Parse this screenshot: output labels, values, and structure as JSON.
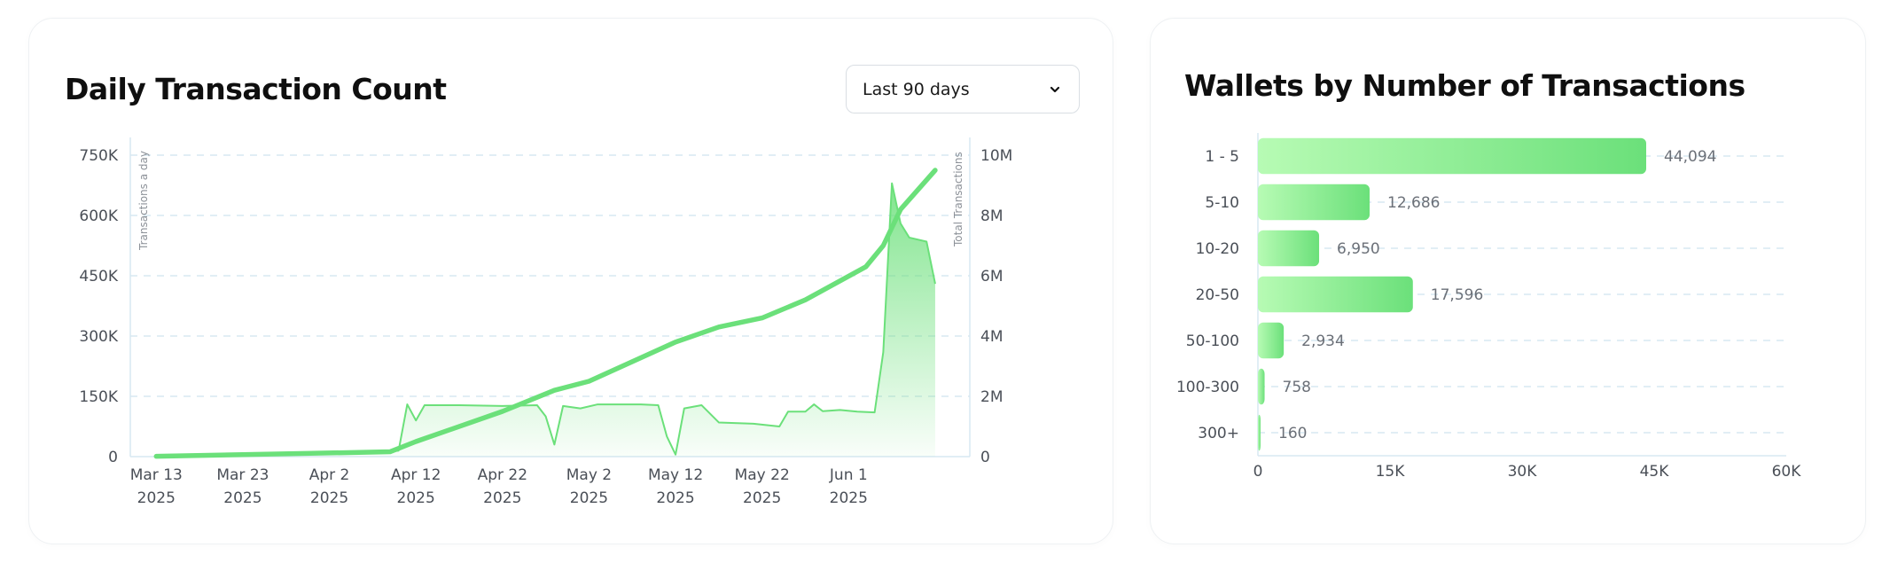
{
  "colors": {
    "accent": "#6be07a",
    "accent_light": "#b7fbb4",
    "grid": "#cfe3ef"
  },
  "left_card": {
    "title": "Daily Transaction Count",
    "range_select": {
      "selected": "Last 90 days",
      "icon": "chevron-down-icon"
    }
  },
  "right_card": {
    "title": "Wallets by Number of Transactions"
  },
  "chart_data": [
    {
      "type": "line",
      "title": "Daily Transaction Count",
      "y_left_label": "Transactions a day",
      "y_right_label": "Total Transactions",
      "y_left_ticks": [
        "0",
        "150K",
        "300K",
        "450K",
        "600K",
        "750K"
      ],
      "y_right_ticks": [
        "0",
        "2M",
        "4M",
        "6M",
        "8M",
        "10M"
      ],
      "y_left_range": [
        0,
        750000
      ],
      "y_right_range": [
        0,
        10000000
      ],
      "x_range": [
        "2025-03-10",
        "2025-06-15"
      ],
      "x_ticks": [
        {
          "date": "2025-03-13",
          "label": "Mar 13",
          "year": "2025"
        },
        {
          "date": "2025-03-23",
          "label": "Mar 23",
          "year": "2025"
        },
        {
          "date": "2025-04-02",
          "label": "Apr 2",
          "year": "2025"
        },
        {
          "date": "2025-04-12",
          "label": "Apr 12",
          "year": "2025"
        },
        {
          "date": "2025-04-22",
          "label": "Apr 22",
          "year": "2025"
        },
        {
          "date": "2025-05-02",
          "label": "May 2",
          "year": "2025"
        },
        {
          "date": "2025-05-12",
          "label": "May 12",
          "year": "2025"
        },
        {
          "date": "2025-05-22",
          "label": "May 22",
          "year": "2025"
        },
        {
          "date": "2025-06-01",
          "label": "Jun 1",
          "year": "2025"
        }
      ],
      "grid": true,
      "series": [
        {
          "name": "Transactions a day",
          "axis": "left",
          "style": "area",
          "points": [
            [
              "2025-03-13",
              3000
            ],
            [
              "2025-03-23",
              5000
            ],
            [
              "2025-04-02",
              8000
            ],
            [
              "2025-04-09",
              12000
            ],
            [
              "2025-04-10",
              15000
            ],
            [
              "2025-04-11",
              130000
            ],
            [
              "2025-04-12",
              90000
            ],
            [
              "2025-04-13",
              128000
            ],
            [
              "2025-04-17",
              128000
            ],
            [
              "2025-04-22",
              126000
            ],
            [
              "2025-04-26",
              128000
            ],
            [
              "2025-04-27",
              100000
            ],
            [
              "2025-04-28",
              30000
            ],
            [
              "2025-04-29",
              126000
            ],
            [
              "2025-05-01",
              120000
            ],
            [
              "2025-05-03",
              130000
            ],
            [
              "2025-05-08",
              130000
            ],
            [
              "2025-05-10",
              128000
            ],
            [
              "2025-05-11",
              50000
            ],
            [
              "2025-05-12",
              5000
            ],
            [
              "2025-05-13",
              120000
            ],
            [
              "2025-05-15",
              128000
            ],
            [
              "2025-05-17",
              85000
            ],
            [
              "2025-05-21",
              82000
            ],
            [
              "2025-05-24",
              75000
            ],
            [
              "2025-05-25",
              112000
            ],
            [
              "2025-05-27",
              112000
            ],
            [
              "2025-05-28",
              130000
            ],
            [
              "2025-05-29",
              113000
            ],
            [
              "2025-05-31",
              116000
            ],
            [
              "2025-06-02",
              112000
            ],
            [
              "2025-06-04",
              110000
            ],
            [
              "2025-06-05",
              260000
            ],
            [
              "2025-06-06",
              680000
            ],
            [
              "2025-06-07",
              580000
            ],
            [
              "2025-06-08",
              545000
            ],
            [
              "2025-06-10",
              535000
            ],
            [
              "2025-06-11",
              430000
            ]
          ]
        },
        {
          "name": "Total Transactions",
          "axis": "right",
          "style": "line",
          "points": [
            [
              "2025-03-13",
              10000
            ],
            [
              "2025-04-09",
              160000
            ],
            [
              "2025-04-12",
              500000
            ],
            [
              "2025-04-22",
              1500000
            ],
            [
              "2025-04-28",
              2200000
            ],
            [
              "2025-05-02",
              2500000
            ],
            [
              "2025-05-12",
              3800000
            ],
            [
              "2025-05-17",
              4300000
            ],
            [
              "2025-05-22",
              4600000
            ],
            [
              "2025-05-27",
              5200000
            ],
            [
              "2025-06-03",
              6300000
            ],
            [
              "2025-06-05",
              7000000
            ],
            [
              "2025-06-07",
              8200000
            ],
            [
              "2025-06-11",
              9500000
            ]
          ]
        }
      ]
    },
    {
      "type": "bar",
      "orientation": "horizontal",
      "title": "Wallets by Number of Transactions",
      "categories": [
        "1 - 5",
        "5-10",
        "10-20",
        "20-50",
        "50-100",
        "100-300",
        "300+"
      ],
      "values": [
        44094,
        12686,
        6950,
        17596,
        2934,
        758,
        160
      ],
      "value_labels": [
        "44,094",
        "12,686",
        "6,950",
        "17,596",
        "2,934",
        "758",
        "160"
      ],
      "xlim": [
        0,
        60000
      ],
      "x_ticks": [
        "0",
        "15K",
        "30K",
        "45K",
        "60K"
      ],
      "grid": true
    }
  ]
}
